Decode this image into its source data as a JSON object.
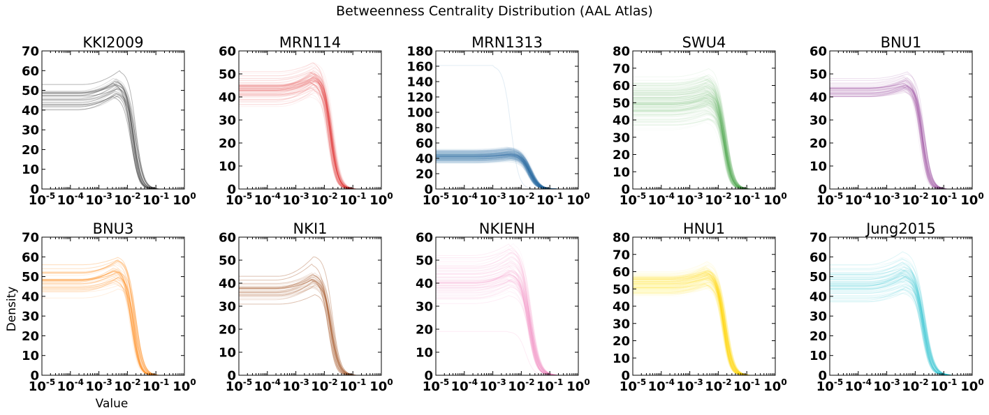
{
  "figure": {
    "title": "Betweenness Centrality Distribution (AAL Atlas)",
    "xlabel": "Value",
    "ylabel": "Density"
  },
  "chart_data": [
    {
      "type": "line",
      "title": "KKI2009",
      "color": "#333333",
      "xscale": "log",
      "xlim": [
        1e-05,
        1
      ],
      "ylim": [
        0,
        70
      ],
      "yticks": [
        0,
        10,
        20,
        30,
        40,
        50,
        60,
        70
      ],
      "x_tick_labels": [
        "10-5",
        "10-4",
        "10-3",
        "10-2",
        "10-1",
        "100"
      ],
      "n_curves": 30,
      "plateau_density": 44,
      "plateau_spread": [
        37,
        53
      ],
      "peak_x": 0.004,
      "peak_density": 50,
      "max_peak_density": 60,
      "drop_x": 0.012,
      "zero_x": 0.1
    },
    {
      "type": "line",
      "title": "MRN114",
      "color": "#e41a1c",
      "xscale": "log",
      "xlim": [
        1e-05,
        1
      ],
      "ylim": [
        0,
        60
      ],
      "yticks": [
        0,
        10,
        20,
        30,
        40,
        50,
        60
      ],
      "x_tick_labels": [
        "10-5",
        "10-4",
        "10-3",
        "10-2",
        "10-1",
        "100"
      ],
      "n_curves": 80,
      "plateau_density": 43,
      "plateau_spread": [
        35,
        51
      ],
      "peak_x": 0.005,
      "peak_density": 48,
      "max_peak_density": 55,
      "drop_x": 0.012,
      "zero_x": 0.1
    },
    {
      "type": "line",
      "title": "MRN1313",
      "color": "#377eb8",
      "xscale": "log",
      "xlim": [
        1e-05,
        1
      ],
      "ylim": [
        0,
        180
      ],
      "yticks": [
        0,
        20,
        40,
        60,
        80,
        100,
        120,
        140,
        160,
        180
      ],
      "x_tick_labels": [
        "10-5",
        "10-4",
        "10-3",
        "10-2",
        "10-1",
        "100"
      ],
      "n_curves": 300,
      "plateau_density": 43,
      "plateau_spread": [
        33,
        52
      ],
      "peak_x": 0.004,
      "peak_density": 46,
      "max_peak_density": 55,
      "drop_x": 0.012,
      "zero_x": 0.15,
      "outlier": {
        "plateau_density": 161,
        "drop_x": 0.003
      }
    },
    {
      "type": "line",
      "title": "SWU4",
      "color": "#4daf4a",
      "xscale": "log",
      "xlim": [
        1e-05,
        1
      ],
      "ylim": [
        0,
        80
      ],
      "yticks": [
        0,
        10,
        20,
        30,
        40,
        50,
        60,
        70,
        80
      ],
      "x_tick_labels": [
        "10-5",
        "10-4",
        "10-3",
        "10-2",
        "10-1",
        "100"
      ],
      "n_curves": 200,
      "plateau_density": 44,
      "plateau_spread": [
        33,
        65
      ],
      "peak_x": 0.004,
      "peak_density": 48,
      "max_peak_density": 70,
      "drop_x": 0.012,
      "zero_x": 0.1
    },
    {
      "type": "line",
      "title": "BNU1",
      "color": "#984ea3",
      "xscale": "log",
      "xlim": [
        1e-05,
        1
      ],
      "ylim": [
        0,
        60
      ],
      "yticks": [
        0,
        10,
        20,
        30,
        40,
        50,
        60
      ],
      "x_tick_labels": [
        "10-5",
        "10-4",
        "10-3",
        "10-2",
        "10-1",
        "100"
      ],
      "n_curves": 60,
      "plateau_density": 43,
      "plateau_spread": [
        38,
        48
      ],
      "peak_x": 0.004,
      "peak_density": 46,
      "max_peak_density": 51,
      "drop_x": 0.013,
      "zero_x": 0.1
    },
    {
      "type": "line",
      "title": "BNU3",
      "color": "#ff7f00",
      "xscale": "log",
      "xlim": [
        1e-05,
        1
      ],
      "ylim": [
        0,
        70
      ],
      "yticks": [
        0,
        10,
        20,
        30,
        40,
        50,
        60,
        70
      ],
      "x_tick_labels": [
        "10-5",
        "10-4",
        "10-3",
        "10-2",
        "10-1",
        "100"
      ],
      "n_curves": 40,
      "plateau_density": 45,
      "plateau_spread": [
        38,
        56
      ],
      "peak_x": 0.004,
      "peak_density": 50,
      "max_peak_density": 60,
      "drop_x": 0.012,
      "zero_x": 0.1
    },
    {
      "type": "line",
      "title": "NKI1",
      "color": "#a65628",
      "xscale": "log",
      "xlim": [
        1e-05,
        1
      ],
      "ylim": [
        0,
        60
      ],
      "yticks": [
        0,
        10,
        20,
        30,
        40,
        50,
        60
      ],
      "x_tick_labels": [
        "10-5",
        "10-4",
        "10-3",
        "10-2",
        "10-1",
        "100"
      ],
      "n_curves": 30,
      "plateau_density": 36,
      "plateau_spread": [
        30,
        43
      ],
      "peak_x": 0.005,
      "peak_density": 41,
      "max_peak_density": 52,
      "drop_x": 0.012,
      "zero_x": 0.1
    },
    {
      "type": "line",
      "title": "NKIENH",
      "color": "#f781bf",
      "xscale": "log",
      "xlim": [
        1e-05,
        1
      ],
      "ylim": [
        0,
        60
      ],
      "yticks": [
        0,
        10,
        20,
        30,
        40,
        50,
        60
      ],
      "x_tick_labels": [
        "10-5",
        "10-4",
        "10-3",
        "10-2",
        "10-1",
        "100"
      ],
      "n_curves": 80,
      "plateau_density": 38,
      "plateau_spread": [
        30,
        52
      ],
      "peak_x": 0.005,
      "peak_density": 43,
      "max_peak_density": 57,
      "drop_x": 0.012,
      "zero_x": 0.15,
      "outlier": {
        "plateau_density": 19,
        "drop_x": 0.01
      }
    },
    {
      "type": "line",
      "title": "HNU1",
      "color": "#ffd700",
      "xscale": "log",
      "xlim": [
        1e-05,
        1
      ],
      "ylim": [
        0,
        80
      ],
      "yticks": [
        0,
        10,
        20,
        30,
        40,
        50,
        60,
        70,
        80
      ],
      "x_tick_labels": [
        "10-5",
        "10-4",
        "10-3",
        "10-2",
        "10-1",
        "100"
      ],
      "n_curves": 200,
      "plateau_density": 53,
      "plateau_spread": [
        45,
        60
      ],
      "peak_x": 0.004,
      "peak_density": 58,
      "max_peak_density": 66,
      "drop_x": 0.012,
      "zero_x": 0.1
    },
    {
      "type": "line",
      "title": "Jung2015",
      "color": "#17becf",
      "xscale": "log",
      "xlim": [
        1e-05,
        1
      ],
      "ylim": [
        0,
        70
      ],
      "yticks": [
        0,
        10,
        20,
        30,
        40,
        50,
        60,
        70
      ],
      "x_tick_labels": [
        "10-5",
        "10-4",
        "10-3",
        "10-2",
        "10-1",
        "100"
      ],
      "n_curves": 80,
      "plateau_density": 43,
      "plateau_spread": [
        35,
        56
      ],
      "peak_x": 0.004,
      "peak_density": 48,
      "max_peak_density": 63,
      "drop_x": 0.012,
      "zero_x": 0.15
    }
  ]
}
